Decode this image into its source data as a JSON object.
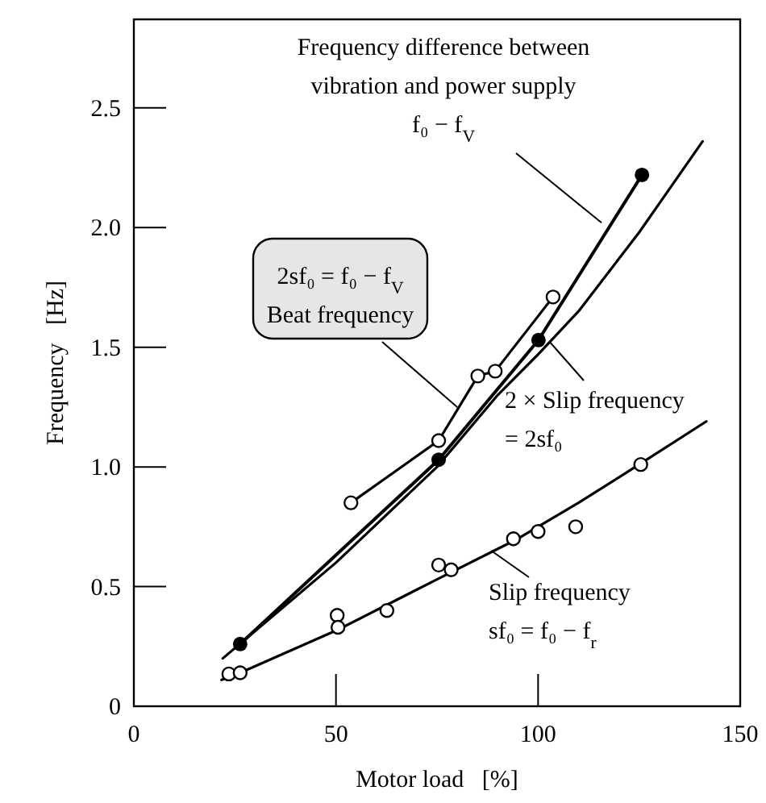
{
  "chart_data": {
    "type": "line",
    "xlabel": "Motor load   [%]",
    "ylabel": "Frequency   [Hz]",
    "xlim": [
      0,
      150
    ],
    "xticks": [
      0,
      50,
      100,
      150
    ],
    "ylim": [
      0,
      2.87
    ],
    "yticks": [
      {
        "value": 0,
        "label": "0"
      },
      {
        "value": 0.5,
        "label": "0.5"
      },
      {
        "value": 1,
        "label": "1.0"
      },
      {
        "value": 1.5,
        "label": "1.5"
      },
      {
        "value": 2,
        "label": "2.0"
      },
      {
        "value": 2.5,
        "label": "2.5"
      }
    ],
    "grid": false,
    "series": [
      {
        "color": "#000000",
        "marker": "circle",
        "x": [
          26.3,
          75.4,
          100.1,
          125.7
        ],
        "values": [
          0.26,
          1.03,
          1.53,
          2.22
        ]
      },
      {
        "color": "#000000",
        "marker": "none",
        "x": [
          22,
          50,
          75,
          90,
          100,
          110,
          125,
          140.7
        ],
        "values": [
          0.2,
          0.6,
          1.0,
          1.3,
          1.47,
          1.65,
          1.98,
          2.36
        ]
      },
      {
        "color": "#000000",
        "marker": "none",
        "x": [
          53.7,
          75.4,
          85.1,
          89.4,
          103.7
        ],
        "values": [
          0.85,
          1.11,
          1.38,
          1.4,
          1.71
        ]
      },
      {
        "type": "scatter",
        "color": "#000000",
        "marker": "circle",
        "x": [
          53.7,
          75.4,
          85.1,
          89.4,
          103.7
        ],
        "values": [
          0.85,
          1.11,
          1.38,
          1.4,
          1.71
        ]
      },
      {
        "color": "#000000",
        "marker": "none",
        "x": [
          21.7,
          26.3,
          50.5,
          75,
          95,
          110,
          125,
          141.6
        ],
        "values": [
          0.11,
          0.14,
          0.32,
          0.53,
          0.7,
          0.85,
          1.01,
          1.19
        ]
      },
      {
        "type": "scatter",
        "color": "#000000",
        "marker": "circle",
        "x": [
          23.5,
          26.3,
          50.3,
          50.5,
          62.6,
          75.4,
          78.5,
          93.9,
          100,
          109.3,
          125.4
        ],
        "values": [
          0.135,
          0.14,
          0.38,
          0.33,
          0.4,
          0.59,
          0.57,
          0.7,
          0.73,
          0.75,
          1.01
        ]
      }
    ],
    "annotations": [
      {
        "text": "Frequency difference between\nvibration and power supply\nf₀ − f$_{V}$",
        "x": 115.7,
        "y": 2.02
      },
      {
        "text": "2sf₀ = f₀ − f$_{V}$\nBeat frequency",
        "x": 80,
        "y": 1.25
      },
      {
        "text": "2 × Slip frequency\n= 2sf₀",
        "x": 103,
        "y": 1.52
      },
      {
        "text": "Slip frequency\nsf₀ = f₀ − f$_{r}$",
        "x": 88.4,
        "y": 0.65
      }
    ]
  }
}
